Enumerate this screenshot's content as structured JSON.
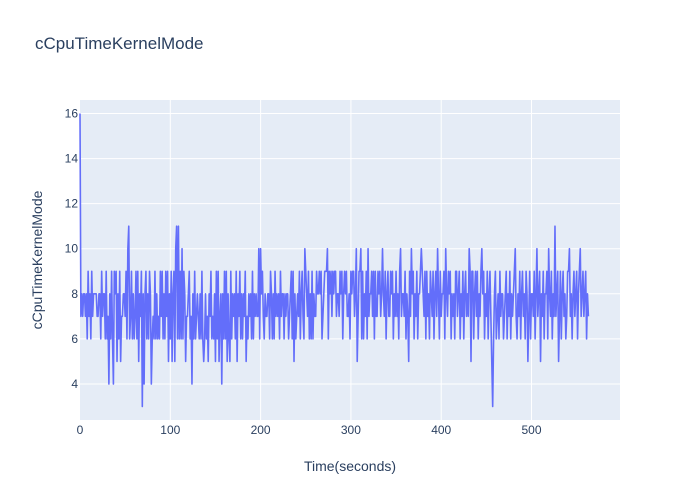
{
  "chart_data": {
    "type": "line",
    "title": "cCpuTimeKernelMode",
    "xlabel": "Time(seconds)",
    "ylabel": "cCpuTimeKernelMode",
    "xlim": [
      0,
      598
    ],
    "ylim": [
      2.4,
      16.6
    ],
    "x_ticks": [
      0,
      100,
      200,
      300,
      400,
      500
    ],
    "y_ticks": [
      4,
      6,
      8,
      10,
      12,
      14,
      16
    ],
    "grid": true,
    "legend": "none",
    "colors": {
      "line": "#636efa",
      "plot_bg": "#e5ecf6",
      "grid": "#ffffff",
      "text": "#2a3f5f"
    },
    "series": [
      {
        "x_start": 0,
        "x_step": 1,
        "values": [
          16,
          7,
          8,
          7,
          8,
          8,
          7,
          8,
          6,
          9,
          7,
          8,
          6,
          9,
          7,
          8,
          8,
          8,
          8,
          7,
          7,
          8,
          8,
          6,
          9,
          7,
          8,
          8,
          6,
          9,
          6,
          7,
          4,
          8,
          6,
          9,
          6,
          4,
          9,
          8,
          9,
          5,
          8,
          6,
          9,
          5,
          7,
          7,
          8,
          8,
          7,
          9,
          6,
          10,
          11,
          6,
          7,
          9,
          6,
          8,
          6,
          7,
          9,
          6,
          9,
          5,
          8,
          7,
          9,
          3,
          8,
          4,
          8,
          9,
          6,
          8,
          6,
          9,
          8,
          4,
          6,
          7,
          6,
          9,
          6,
          8,
          6,
          7,
          6,
          9,
          7,
          9,
          6,
          8,
          6,
          9,
          7,
          9,
          5,
          8,
          6,
          9,
          5,
          8,
          9,
          5,
          10,
          11,
          6,
          11,
          6,
          9,
          6,
          10,
          6,
          9,
          8,
          5,
          7,
          7,
          8,
          9,
          6,
          7,
          4,
          8,
          6,
          9,
          6,
          7,
          8,
          7,
          6,
          8,
          6,
          9,
          6,
          5,
          6,
          8,
          6,
          7,
          5,
          8,
          7,
          9,
          6,
          7,
          6,
          8,
          5,
          9,
          6,
          9,
          5,
          7,
          8,
          4,
          8,
          6,
          9,
          6,
          9,
          5,
          8,
          6,
          5,
          9,
          6,
          8,
          7,
          8,
          6,
          9,
          5,
          8,
          7,
          9,
          6,
          8,
          6,
          8,
          7,
          9,
          5,
          7,
          6,
          8,
          7,
          8,
          6,
          9,
          6,
          8,
          7,
          8,
          7,
          7,
          10,
          6,
          10,
          8,
          9,
          7,
          6,
          8,
          7,
          7,
          8,
          8,
          6,
          9,
          8,
          6,
          8,
          6,
          9,
          7,
          8,
          7,
          8,
          6,
          9,
          7,
          8,
          8,
          6,
          8,
          7,
          8,
          8,
          6,
          7,
          8,
          9,
          6,
          9,
          5,
          8,
          6,
          7,
          8,
          7,
          9,
          6,
          8,
          9,
          7,
          6,
          10,
          9,
          8,
          7,
          9,
          6,
          8,
          6,
          9,
          6,
          8,
          7,
          7,
          9,
          8,
          8,
          9,
          8,
          9,
          6,
          7,
          8,
          9,
          9,
          9,
          10,
          6,
          9,
          8,
          9,
          7,
          9,
          8,
          9,
          9,
          7,
          8,
          8,
          7,
          9,
          8,
          9,
          6,
          8,
          9,
          8,
          9,
          7,
          7,
          8,
          6,
          9,
          8,
          9,
          9,
          7,
          8,
          10,
          5,
          7,
          9,
          9,
          10,
          6,
          9,
          6,
          8,
          7,
          9,
          6,
          10,
          7,
          8,
          8,
          9,
          7,
          9,
          6,
          9,
          7,
          7,
          9,
          8,
          9,
          7,
          8,
          10,
          8,
          7,
          9,
          6,
          8,
          9,
          7,
          7,
          9,
          8,
          9,
          6,
          8,
          7,
          9,
          7,
          8,
          6,
          9,
          10,
          7,
          8,
          8,
          7,
          9,
          6,
          8,
          7,
          5,
          9,
          7,
          10,
          8,
          9,
          6,
          8,
          7,
          9,
          6,
          8,
          8,
          9,
          10,
          9,
          8,
          7,
          9,
          6,
          9,
          7,
          8,
          6,
          9,
          8,
          7,
          9,
          6,
          8,
          9,
          7,
          10,
          8,
          6,
          9,
          7,
          8,
          8,
          9,
          6,
          10,
          8,
          7,
          9,
          8,
          9,
          6,
          8,
          7,
          8,
          6,
          9,
          9,
          7,
          8,
          9,
          6,
          8,
          7,
          9,
          6,
          8,
          9,
          7,
          8,
          7,
          10,
          9,
          5,
          9,
          9,
          6,
          8,
          9,
          7,
          9,
          6,
          8,
          7,
          9,
          10,
          8,
          9,
          6,
          8,
          7,
          9,
          6,
          8,
          9,
          7,
          5,
          3,
          6,
          8,
          9,
          6,
          7,
          8,
          6,
          9,
          7,
          8,
          8,
          6,
          7,
          8,
          9,
          6,
          8,
          7,
          9,
          6,
          8,
          7,
          8,
          9,
          10,
          7,
          6,
          8,
          7,
          9,
          6,
          8,
          9,
          7,
          8,
          6,
          9,
          8,
          5,
          7,
          9,
          6,
          8,
          8,
          7,
          9,
          6,
          8,
          10,
          7,
          8,
          9,
          5,
          8,
          7,
          9,
          6,
          8,
          8,
          9,
          6,
          10,
          8,
          7,
          9,
          6,
          8,
          7,
          11,
          7,
          8,
          9,
          5,
          7,
          9,
          6,
          8,
          9,
          7,
          8,
          6,
          7,
          9,
          9,
          10,
          7,
          8,
          6,
          8,
          9,
          7,
          8,
          9,
          6,
          8,
          9,
          10,
          7,
          8,
          9,
          7,
          8,
          9,
          6,
          8,
          7
        ]
      }
    ]
  }
}
